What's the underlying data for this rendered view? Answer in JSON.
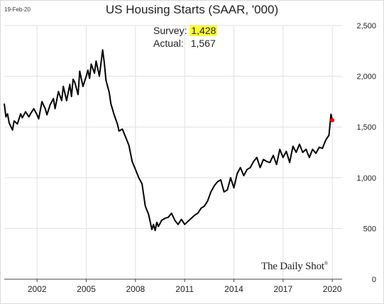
{
  "header": {
    "date": "19-Feb-20",
    "title": "US Housing Starts (SAAR, '000)"
  },
  "annotation": {
    "survey_label": "Survey:",
    "survey_value": "1,428",
    "actual_label": "Actual:",
    "actual_value": "1,567"
  },
  "logo": {
    "text": "The Daily Shot",
    "mark": "®"
  },
  "colors": {
    "line": "#000000",
    "actual_dot": "#ff0000",
    "highlight": "#ffff33",
    "grid": "#e0e0e0"
  },
  "chart_data": {
    "type": "line",
    "title": "US Housing Starts (SAAR, '000)",
    "xlabel": "",
    "ylabel": "",
    "y_axis_side": "right",
    "ylim": [
      0,
      2500
    ],
    "xlim": [
      2000.0,
      2020.6
    ],
    "yticks": [
      0,
      500,
      1000,
      1500,
      2000,
      2500
    ],
    "ytick_labels": [
      "0",
      "500",
      "1,000",
      "1,500",
      "2,000",
      "2,500"
    ],
    "xticks": [
      2002,
      2005,
      2008,
      2011,
      2014,
      2017,
      2020
    ],
    "xtick_labels": [
      "2002",
      "2005",
      "2008",
      "2011",
      "2014",
      "2017",
      "2020"
    ],
    "grid": true,
    "series": [
      {
        "x": [
          2000.0,
          2000.1,
          2000.2,
          2000.3,
          2000.5,
          2000.6,
          2000.8,
          2001.0,
          2001.1,
          2001.3,
          2001.5,
          2001.6,
          2001.8,
          2002.0,
          2002.1,
          2002.3,
          2002.5,
          2002.6,
          2002.8,
          2003.0,
          2003.1,
          2003.3,
          2003.5,
          2003.6,
          2003.8,
          2004.0,
          2004.1,
          2004.2,
          2004.3,
          2004.5,
          2004.6,
          2004.8,
          2005.0,
          2005.1,
          2005.2,
          2005.3,
          2005.5,
          2005.6,
          2005.8,
          2006.0,
          2006.1,
          2006.2,
          2006.4,
          2006.5,
          2006.7,
          2006.9,
          2007.0,
          2007.2,
          2007.4,
          2007.6,
          2007.8,
          2008.0,
          2008.2,
          2008.4,
          2008.6,
          2008.8,
          2009.0,
          2009.1,
          2009.2,
          2009.3,
          2009.4,
          2009.6,
          2009.8,
          2010.0,
          2010.2,
          2010.4,
          2010.6,
          2010.8,
          2011.0,
          2011.2,
          2011.4,
          2011.6,
          2011.8,
          2012.0,
          2012.2,
          2012.4,
          2012.6,
          2012.8,
          2013.0,
          2013.2,
          2013.4,
          2013.6,
          2013.8,
          2014.0,
          2014.2,
          2014.4,
          2014.6,
          2014.8,
          2015.0,
          2015.2,
          2015.4,
          2015.6,
          2015.8,
          2016.0,
          2016.2,
          2016.4,
          2016.6,
          2016.8,
          2017.0,
          2017.2,
          2017.4,
          2017.6,
          2017.8,
          2018.0,
          2018.2,
          2018.4,
          2018.6,
          2018.8,
          2019.0,
          2019.2,
          2019.4,
          2019.6,
          2019.8,
          2019.92,
          2020.0
        ],
        "values": [
          1730,
          1600,
          1630,
          1540,
          1470,
          1560,
          1530,
          1630,
          1590,
          1650,
          1600,
          1630,
          1680,
          1620,
          1580,
          1750,
          1680,
          1620,
          1720,
          1780,
          1680,
          1850,
          1760,
          1900,
          1760,
          1920,
          1800,
          1970,
          1940,
          1820,
          2050,
          1900,
          2000,
          2060,
          1980,
          2120,
          2030,
          2150,
          2000,
          2260,
          2130,
          1960,
          1840,
          1730,
          1620,
          1530,
          1460,
          1480,
          1400,
          1320,
          1160,
          1080,
          1000,
          940,
          720,
          640,
          490,
          540,
          480,
          560,
          520,
          580,
          600,
          610,
          650,
          580,
          540,
          590,
          540,
          570,
          600,
          630,
          650,
          700,
          720,
          770,
          860,
          920,
          960,
          980,
          860,
          880,
          1000,
          900,
          1040,
          1100,
          1020,
          1080,
          1100,
          1160,
          1200,
          1100,
          1180,
          1160,
          1150,
          1220,
          1130,
          1280,
          1200,
          1260,
          1150,
          1310,
          1250,
          1330,
          1250,
          1280,
          1200,
          1280,
          1240,
          1300,
          1290,
          1370,
          1420,
          1626,
          1567
        ]
      }
    ],
    "annotations": [
      {
        "label": "Survey",
        "value": 1428
      },
      {
        "label": "Actual",
        "value": 1567,
        "x": 2020.0,
        "marker": "red-dot"
      }
    ]
  }
}
